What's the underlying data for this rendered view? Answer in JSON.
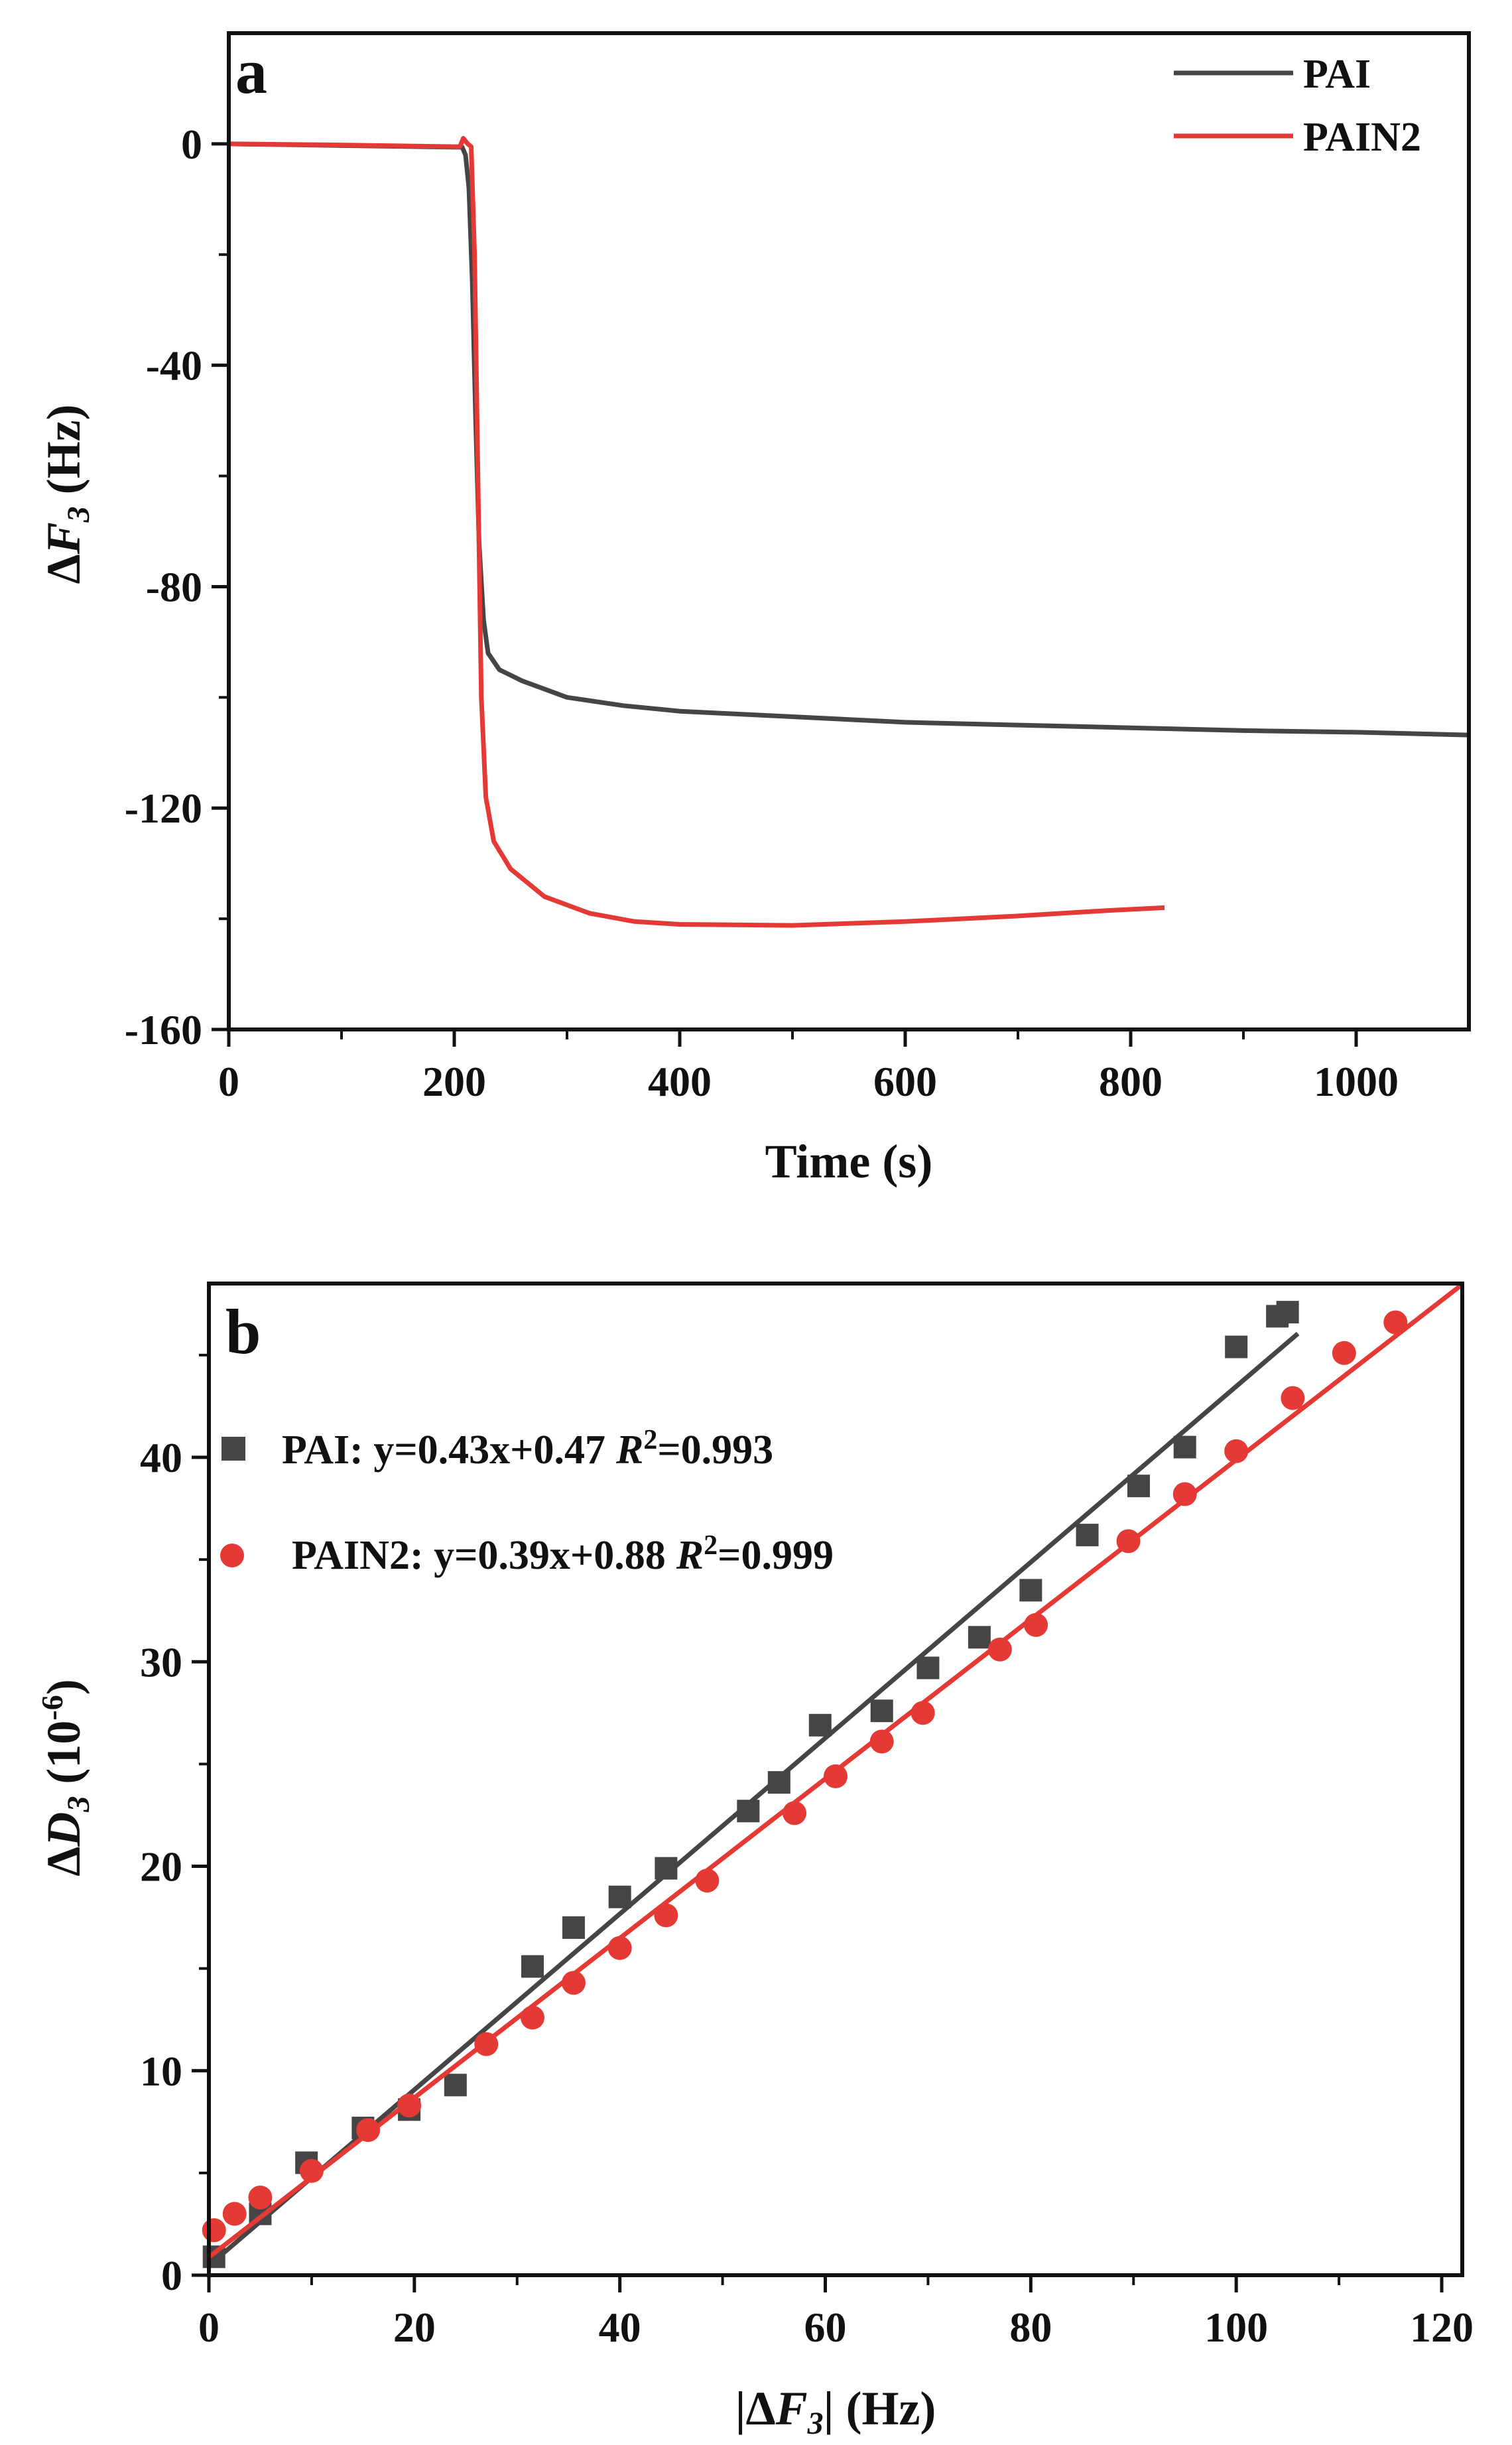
{
  "chart_data": [
    {
      "panel": "a",
      "type": "line",
      "xlabel": "Time (s)",
      "ylabel": "ΔF3 (Hz)",
      "ylabel_parts": {
        "delta": "Δ",
        "var": "F",
        "sub": "3",
        "unit": " (Hz)"
      },
      "xlim": [
        0,
        1100
      ],
      "ylim": [
        -160,
        20
      ],
      "xticks": [
        0,
        200,
        400,
        600,
        800,
        1000
      ],
      "yticks": [
        0,
        -40,
        -80,
        -120,
        -160
      ],
      "legend": [
        {
          "label": "PAI",
          "color": "#454545"
        },
        {
          "label": "PAIN2",
          "color": "#e53935"
        }
      ],
      "series": [
        {
          "name": "PAI",
          "color": "#454545",
          "points": [
            [
              0,
              0
            ],
            [
              100,
              -0.3
            ],
            [
              200,
              -0.6
            ],
            [
              207,
              -0.6
            ],
            [
              210,
              -2
            ],
            [
              213,
              -8
            ],
            [
              216,
              -25
            ],
            [
              219,
              -50
            ],
            [
              222,
              -72
            ],
            [
              226,
              -86
            ],
            [
              230,
              -92
            ],
            [
              240,
              -95
            ],
            [
              260,
              -97
            ],
            [
              300,
              -100
            ],
            [
              350,
              -101.5
            ],
            [
              400,
              -102.5
            ],
            [
              500,
              -103.5
            ],
            [
              600,
              -104.5
            ],
            [
              700,
              -105
            ],
            [
              800,
              -105.5
            ],
            [
              900,
              -106
            ],
            [
              1000,
              -106.3
            ],
            [
              1100,
              -106.8
            ]
          ]
        },
        {
          "name": "PAIN2",
          "color": "#e53935",
          "points": [
            [
              0,
              0
            ],
            [
              100,
              -0.2
            ],
            [
              200,
              -0.5
            ],
            [
              205,
              -0.5
            ],
            [
              208,
              1
            ],
            [
              212,
              0
            ],
            [
              215,
              -0.5
            ],
            [
              218,
              -20
            ],
            [
              221,
              -60
            ],
            [
              224,
              -100
            ],
            [
              228,
              -118
            ],
            [
              235,
              -126
            ],
            [
              250,
              -131
            ],
            [
              280,
              -136
            ],
            [
              320,
              -139
            ],
            [
              360,
              -140.5
            ],
            [
              400,
              -141
            ],
            [
              500,
              -141.2
            ],
            [
              600,
              -140.5
            ],
            [
              700,
              -139.5
            ],
            [
              780,
              -138.5
            ],
            [
              830,
              -138
            ]
          ]
        }
      ]
    },
    {
      "panel": "b",
      "type": "scatter",
      "xlabel": "|ΔF3| (Hz)",
      "xlabel_parts": {
        "pre": "|Δ",
        "var": "F",
        "sub": "3",
        "post": "| (Hz)"
      },
      "ylabel": "ΔD3 (10-6)",
      "ylabel_parts": {
        "delta": "Δ",
        "var": "D",
        "sub": "3",
        "unit": " (10",
        "sup": "-6",
        "close": ")"
      },
      "xlim": [
        0,
        122
      ],
      "ylim": [
        0,
        48.5
      ],
      "xticks": [
        0,
        20,
        40,
        60,
        80,
        100,
        120
      ],
      "yticks": [
        0,
        10,
        20,
        30,
        40
      ],
      "legend": [
        {
          "label": "PAI: y=0.43x+0.47",
          "r2_sym": "R",
          "r2_sup": "2",
          "r2_val": "=0.993",
          "marker": "square",
          "color": "#454545"
        },
        {
          "label": "PAIN2: y=0.39x+0.88",
          "r2_sym": "R",
          "r2_sup": "2",
          "r2_val": "=0.999",
          "marker": "circle",
          "color": "#e53935"
        }
      ],
      "series": [
        {
          "name": "PAI",
          "marker": "square",
          "color": "#454545",
          "fit": {
            "slope": 0.43,
            "intercept": 0.47,
            "x_range": [
              0,
              106
            ]
          },
          "points": [
            [
              0.5,
              0.9
            ],
            [
              5,
              3
            ],
            [
              9.5,
              5.5
            ],
            [
              15,
              7.2
            ],
            [
              19.5,
              8.1
            ],
            [
              24,
              9.3
            ],
            [
              31.5,
              15.1
            ],
            [
              35.5,
              17
            ],
            [
              40,
              18.5
            ],
            [
              44.5,
              19.9
            ],
            [
              52.5,
              22.7
            ],
            [
              55.5,
              24.1
            ],
            [
              59.5,
              26.9
            ],
            [
              65.5,
              27.6
            ],
            [
              70,
              29.7
            ],
            [
              75,
              31.2
            ],
            [
              80,
              33.5
            ],
            [
              85.5,
              36.2
            ],
            [
              90.5,
              38.6
            ],
            [
              95,
              40.5
            ],
            [
              100,
              45.4
            ],
            [
              104,
              46.9
            ],
            [
              105,
              47.1
            ]
          ]
        },
        {
          "name": "PAIN2",
          "marker": "circle",
          "color": "#e53935",
          "fit": {
            "slope": 0.39,
            "intercept": 0.88,
            "x_range": [
              0,
              122
            ]
          },
          "points": [
            [
              0.5,
              2.2
            ],
            [
              2.5,
              3
            ],
            [
              5,
              3.8
            ],
            [
              10,
              5.1
            ],
            [
              15.5,
              7.1
            ],
            [
              19.5,
              8.3
            ],
            [
              27,
              11.3
            ],
            [
              31.5,
              12.6
            ],
            [
              35.5,
              14.3
            ],
            [
              40,
              16
            ],
            [
              44.5,
              17.6
            ],
            [
              48.5,
              19.3
            ],
            [
              57,
              22.6
            ],
            [
              61,
              24.4
            ],
            [
              65.5,
              26.1
            ],
            [
              69.5,
              27.5
            ],
            [
              77,
              30.6
            ],
            [
              80.5,
              31.8
            ],
            [
              89.5,
              35.9
            ],
            [
              95,
              38.2
            ],
            [
              100,
              40.3
            ],
            [
              105.5,
              42.9
            ],
            [
              110.5,
              45.1
            ],
            [
              115.5,
              46.6
            ]
          ]
        }
      ]
    }
  ]
}
